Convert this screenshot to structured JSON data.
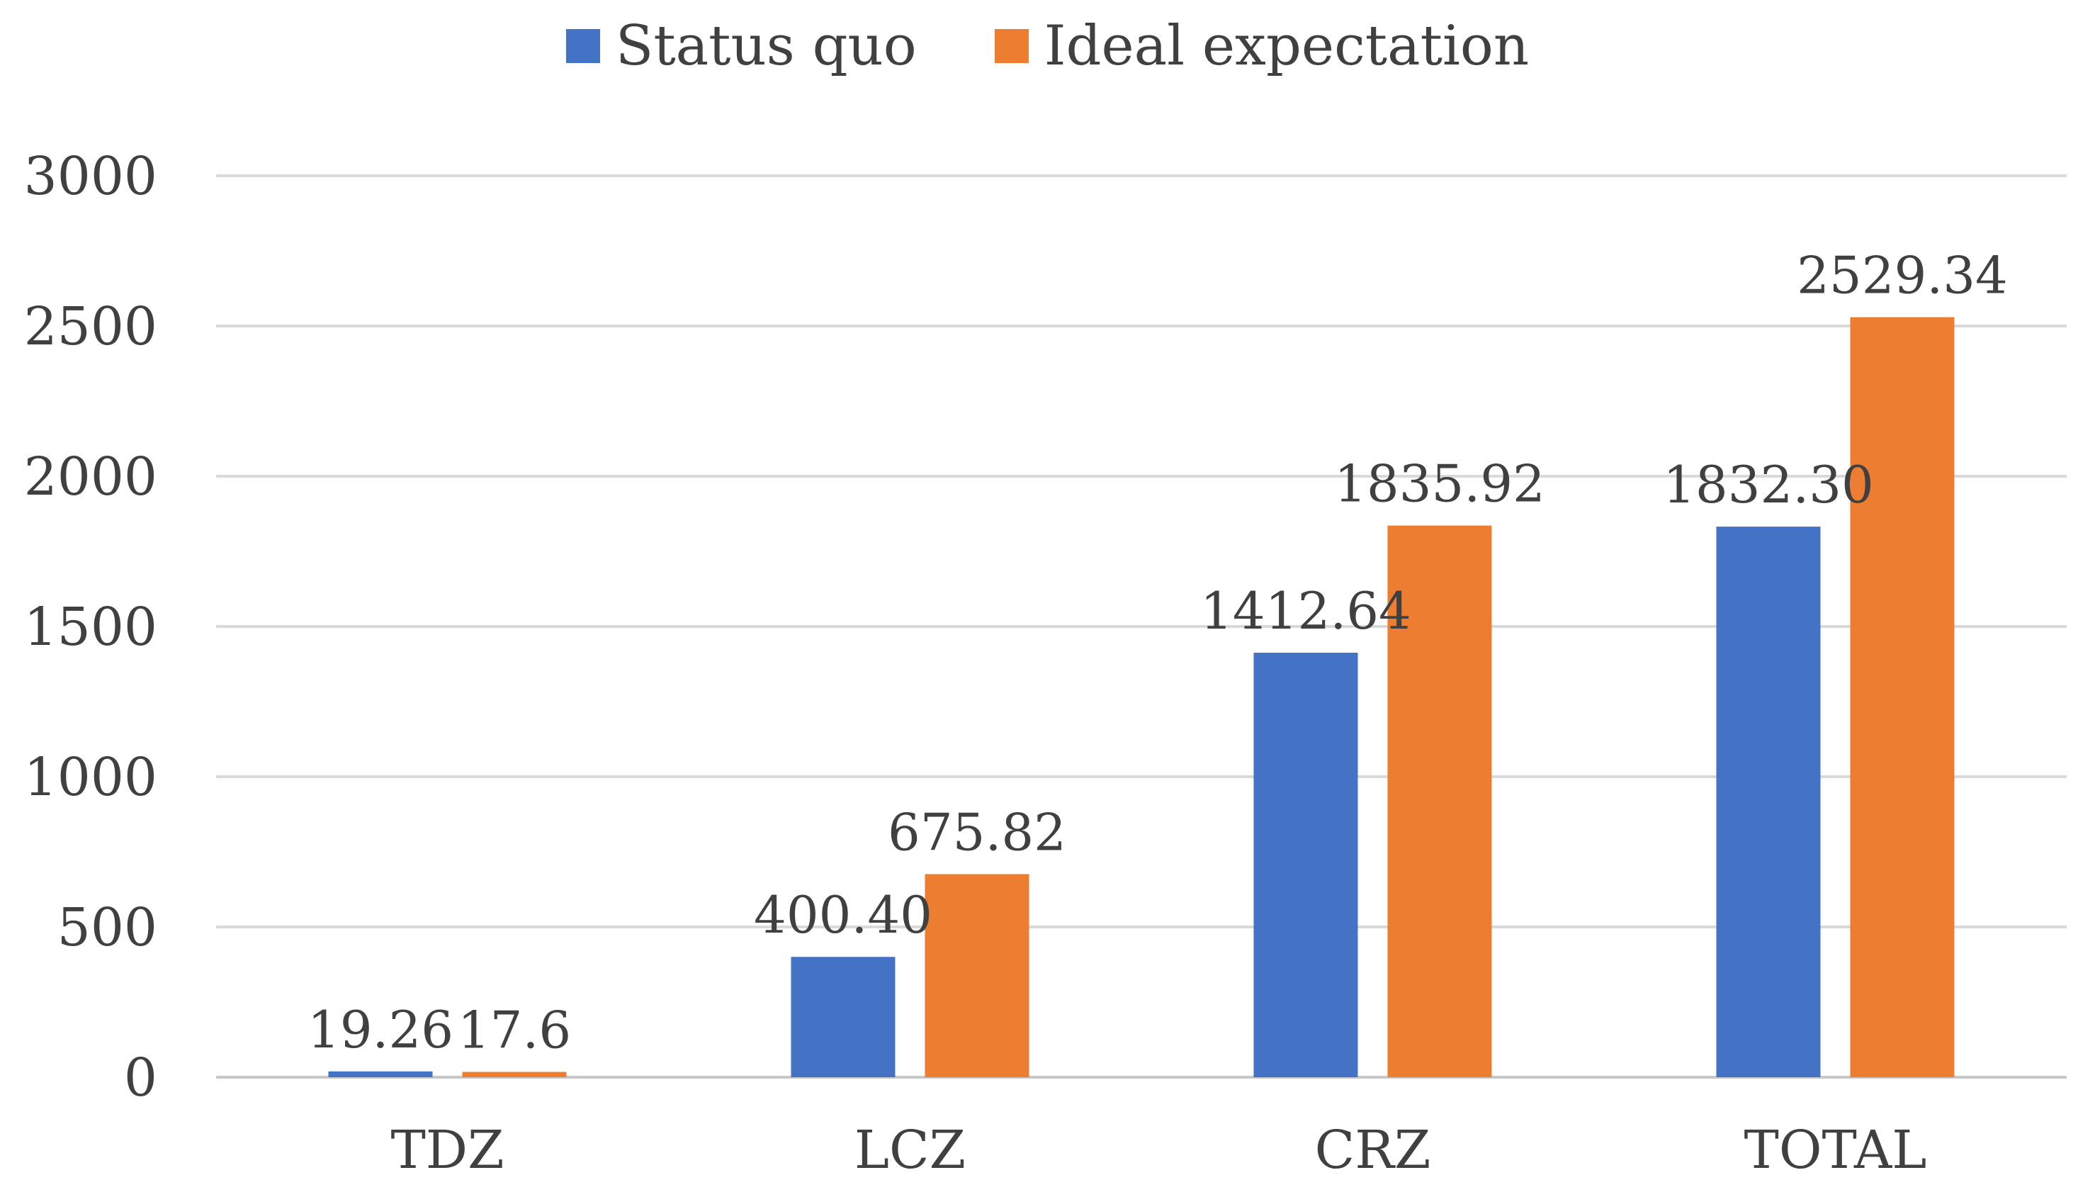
{
  "chart_data": {
    "type": "bar",
    "title": "",
    "xlabel": "",
    "ylabel": "",
    "categories": [
      "TDZ",
      "LCZ",
      "CRZ",
      "TOTAL"
    ],
    "series": [
      {
        "name": "Status quo",
        "color": "#4472C4",
        "values": [
          19.26,
          400.4,
          1412.64,
          1832.3
        ],
        "labels": [
          "19.26",
          "400.40",
          "1412.64",
          "1832.30"
        ]
      },
      {
        "name": "Ideal expectation",
        "color": "#ED7D31",
        "values": [
          17.6,
          675.82,
          1835.92,
          2529.34
        ],
        "labels": [
          "17.6",
          "675.82",
          "1835.92",
          "2529.34"
        ]
      }
    ],
    "ylim": [
      0,
      3000
    ],
    "yticks": [
      0,
      500,
      1000,
      1500,
      2000,
      2500,
      3000
    ],
    "grid": true,
    "legend": "top-center"
  }
}
